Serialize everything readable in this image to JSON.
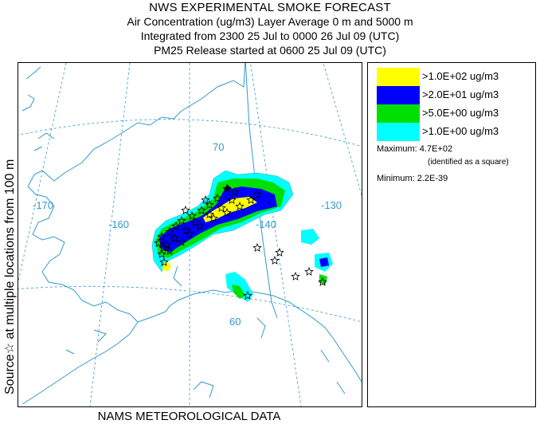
{
  "title": "NWS EXPERIMENTAL SMOKE FORECAST",
  "subtitle_lines": [
    "Air Concentration (ug/m3) Layer Average    0 m and  5000 m",
    "Integrated from 2300 25 Jul to 0000 26 Jul 09 (UTC)",
    "PM25 Release started at 0600 25 Jul 09 (UTC)"
  ],
  "side_label": "Source☆  at multiple locations    from   100 m",
  "bottom_label": "NAMS METEOROLOGICAL DATA",
  "graticule_labels": {
    "lat_70": "70",
    "lat_60": "60",
    "lon_170": "-170",
    "lon_160": "-160",
    "lon_140": "-140",
    "lon_130": "-130"
  },
  "legend": {
    "items": [
      {
        "label": ">1.0E+02 ug/m3",
        "color": "#ffff00"
      },
      {
        "label": ">2.0E+01 ug/m3",
        "color": "#0000ff"
      },
      {
        "label": ">5.0E+00 ug/m3",
        "color": "#00e000"
      },
      {
        "label": ">1.0E+00 ug/m3",
        "color": "#00ffff"
      }
    ],
    "maximum_label": "Maximum:",
    "maximum_value": "4.7E+02",
    "maximum_note": "(identified as a square)",
    "minimum_label": "Minimum:",
    "minimum_value": "2.2E-39"
  },
  "colors": {
    "coast": "#3399cc",
    "graticule": "#3399cc",
    "border": "#3399cc"
  }
}
